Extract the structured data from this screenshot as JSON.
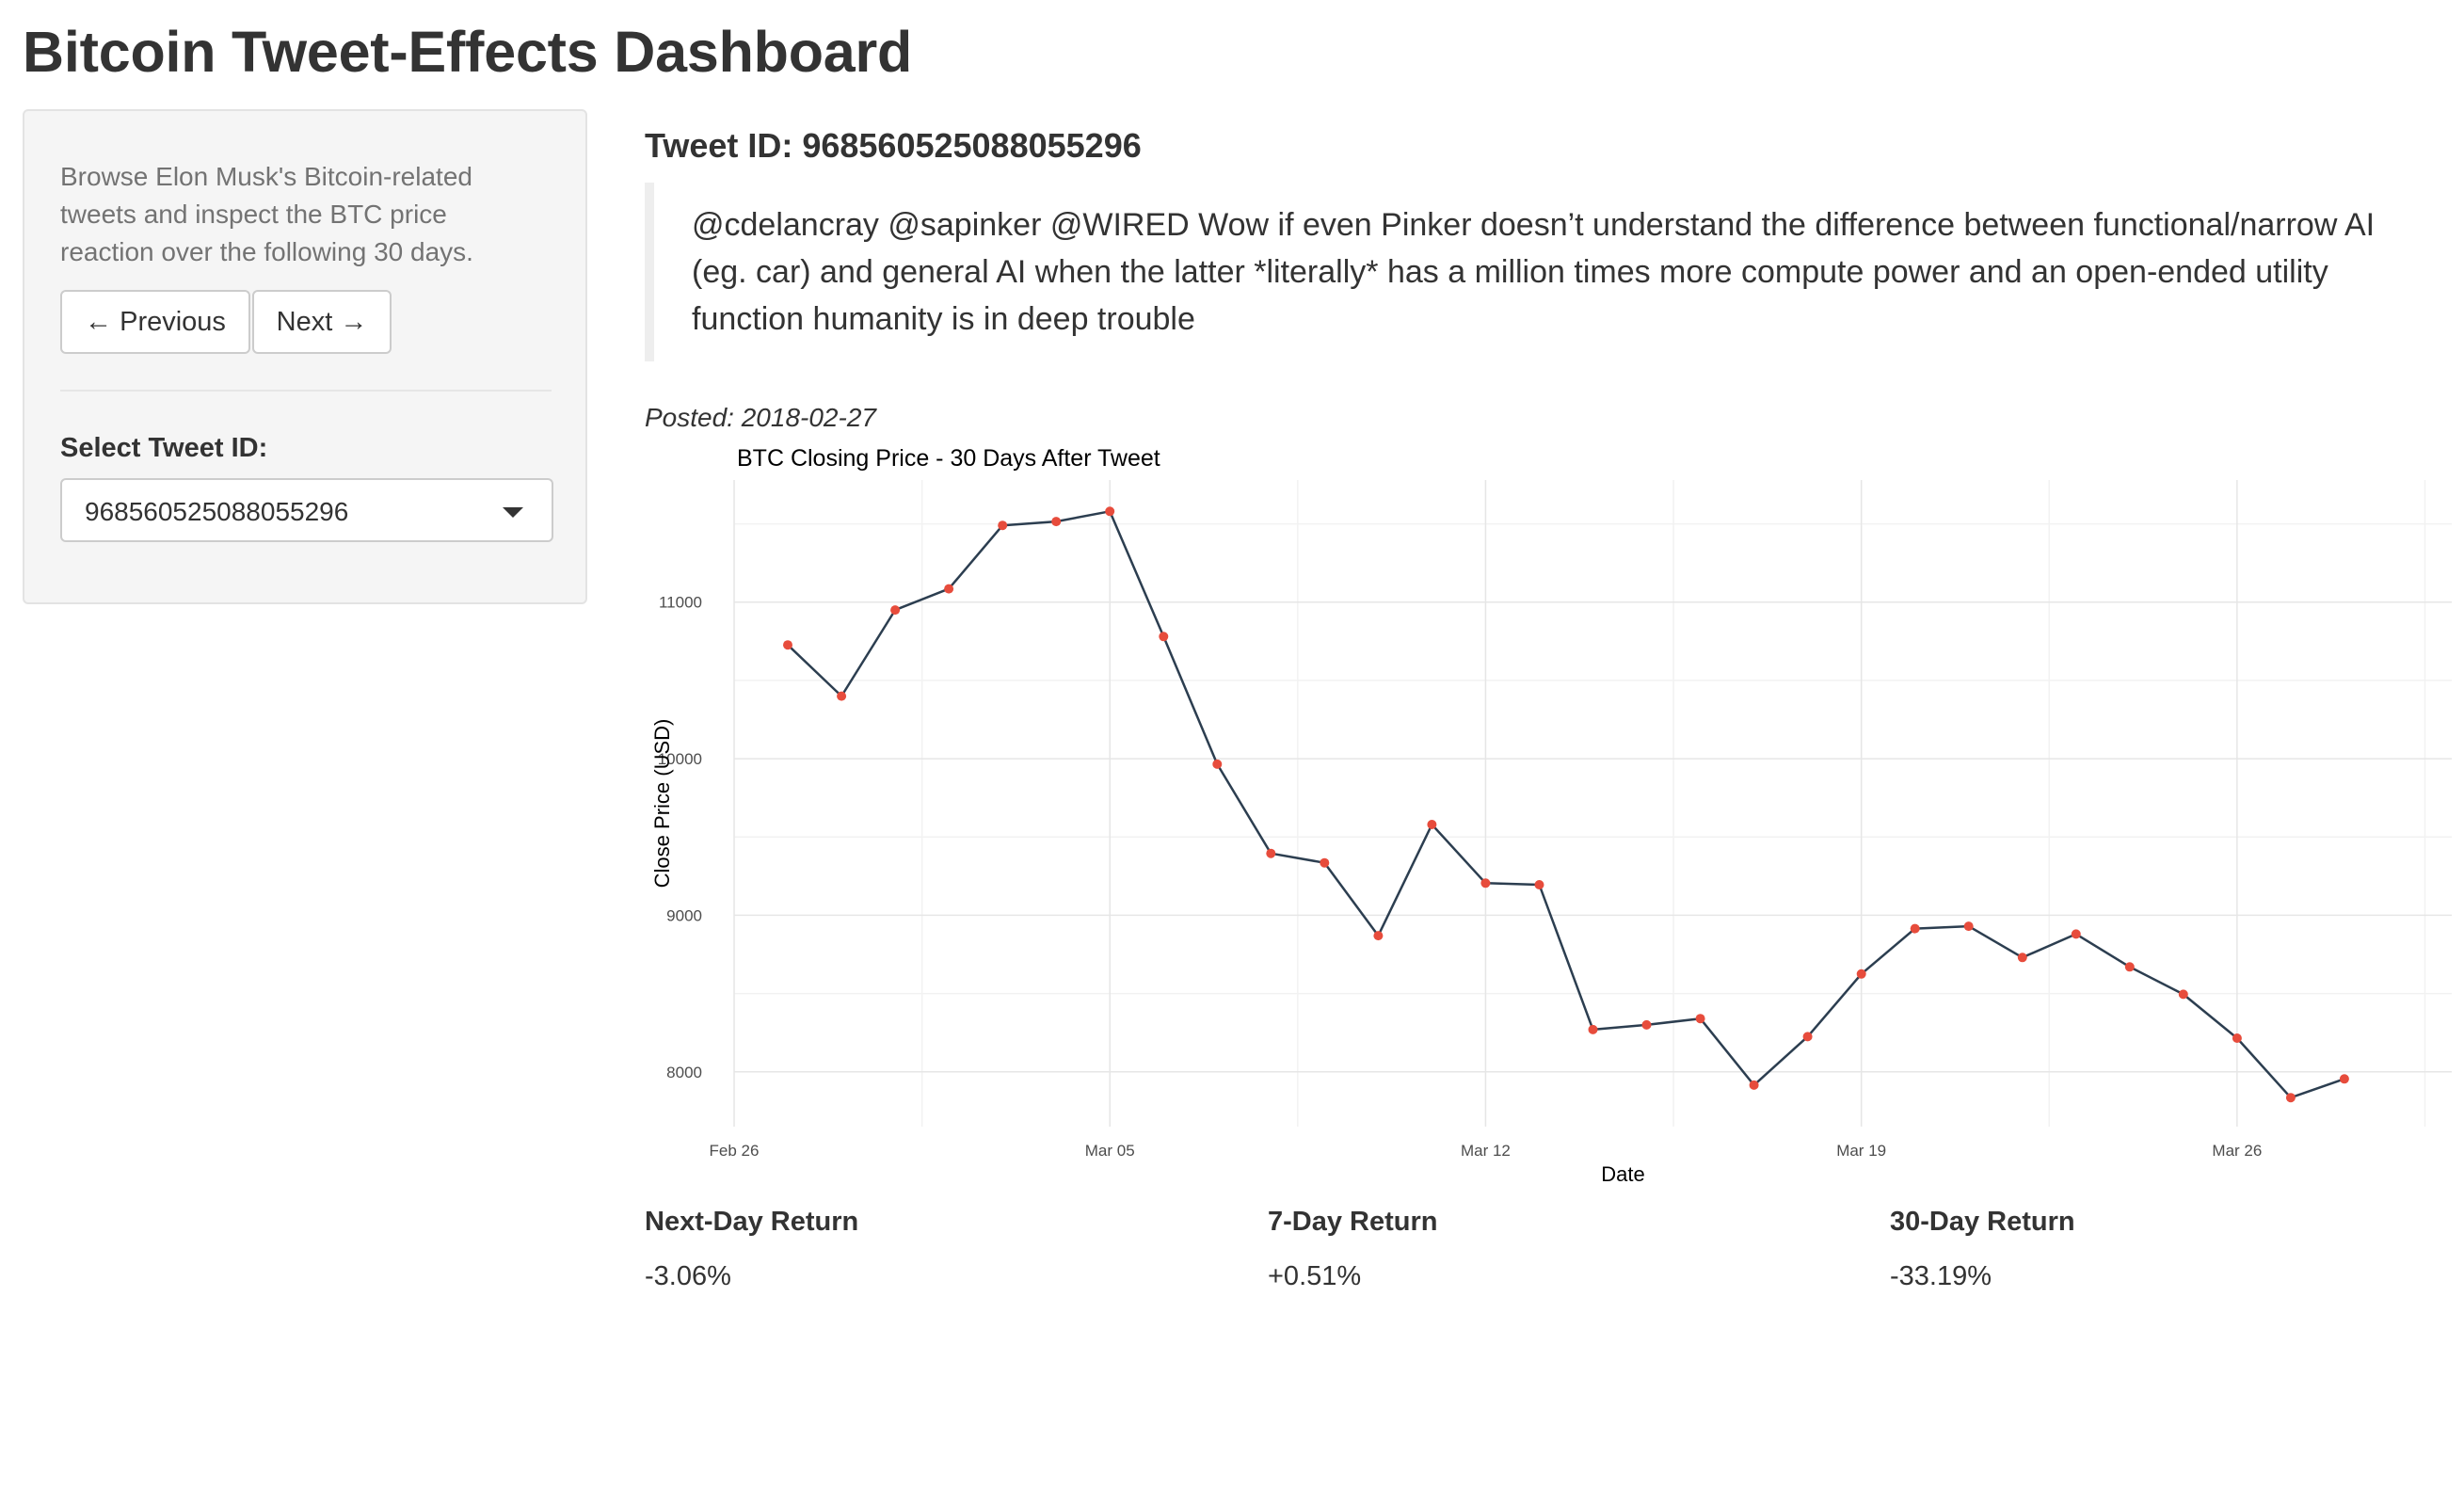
{
  "page_title": "Bitcoin Tweet-Effects Dashboard",
  "sidebar": {
    "help_text": "Browse Elon Musk's Bitcoin-related tweets and inspect the BTC price reaction over the following 30 days.",
    "prev_label": "← Previous",
    "next_label": "Next →",
    "select_label": "Select Tweet ID:",
    "selected_value": "968560525088055296"
  },
  "tweet": {
    "heading": "Tweet ID: 968560525088055296",
    "text": "@cdelancray @sapinker @WIRED Wow if even Pinker doesn’t understand the difference between functional/narrow AI (eg. car) and general AI when the latter *literally* has a million times more compute power and an open-ended utility function humanity is in deep trouble",
    "posted_label": "Posted: 2018-02-27"
  },
  "chart_data": {
    "type": "line",
    "title": "BTC Closing Price - 30 Days After Tweet",
    "xlabel": "Date",
    "ylabel": "Close Price (USD)",
    "x": [
      "2018-02-27",
      "2018-02-28",
      "2018-03-01",
      "2018-03-02",
      "2018-03-03",
      "2018-03-04",
      "2018-03-05",
      "2018-03-06",
      "2018-03-07",
      "2018-03-08",
      "2018-03-09",
      "2018-03-10",
      "2018-03-11",
      "2018-03-12",
      "2018-03-13",
      "2018-03-14",
      "2018-03-15",
      "2018-03-16",
      "2018-03-17",
      "2018-03-18",
      "2018-03-19",
      "2018-03-20",
      "2018-03-21",
      "2018-03-22",
      "2018-03-23",
      "2018-03-24",
      "2018-03-25",
      "2018-03-26",
      "2018-03-27",
      "2018-03-28"
    ],
    "values": [
      10727,
      10400,
      10950,
      11085,
      11490,
      11515,
      11580,
      10780,
      9965,
      9395,
      9335,
      8870,
      9580,
      9205,
      9195,
      8270,
      8300,
      8340,
      7915,
      8225,
      8625,
      8915,
      8930,
      8730,
      8880,
      8670,
      8495,
      8215,
      7835,
      7955
    ],
    "xlim": [
      "2018-02-26",
      "2018-03-30"
    ],
    "ylim": [
      7650,
      11780
    ],
    "x_ticks": [
      {
        "date": "2018-02-26",
        "label": "Feb 26"
      },
      {
        "date": "2018-03-05",
        "label": "Mar 05"
      },
      {
        "date": "2018-03-12",
        "label": "Mar 12"
      },
      {
        "date": "2018-03-19",
        "label": "Mar 19"
      },
      {
        "date": "2018-03-26",
        "label": "Mar 26"
      }
    ],
    "y_ticks": [
      8000,
      9000,
      10000,
      11000
    ],
    "grid": true,
    "line_color": "#2c3e50",
    "point_color": "#e74c3c"
  },
  "metrics": [
    {
      "label": "Next-Day Return",
      "value": "-3.06%"
    },
    {
      "label": "7-Day Return",
      "value": "+0.51%"
    },
    {
      "label": "30-Day Return",
      "value": "-33.19%"
    }
  ]
}
